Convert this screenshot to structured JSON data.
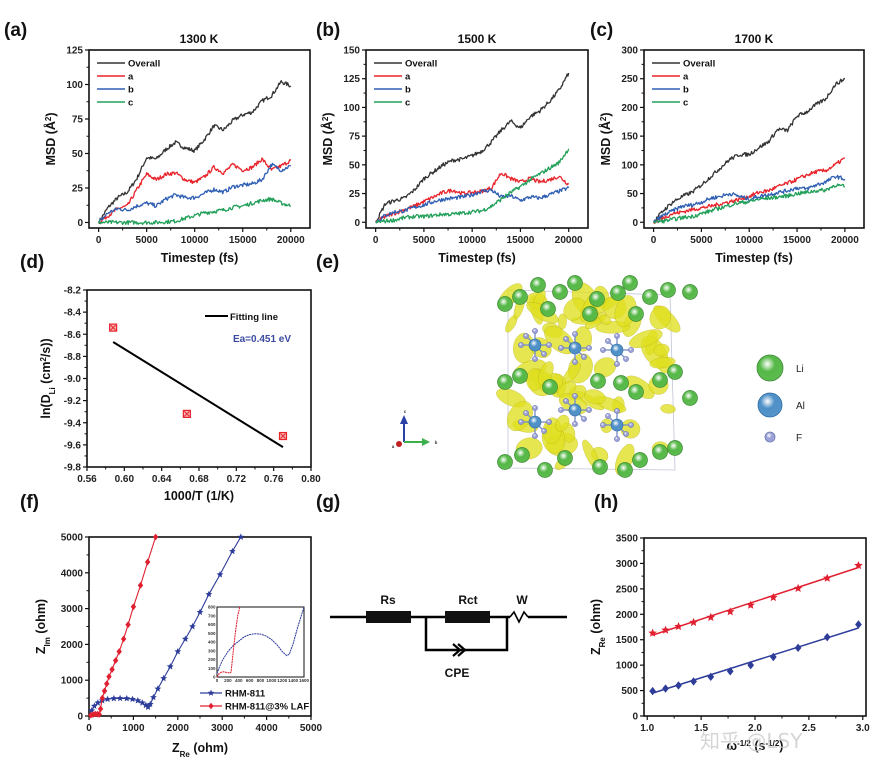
{
  "figure": {
    "panel_labels": [
      "(a)",
      "(b)",
      "(c)",
      "(d)",
      "(e)",
      "(f)",
      "(g)",
      "(h)"
    ],
    "watermark": "知乎 @LSY",
    "colors": {
      "overall": "#333333",
      "a": "#e8242b",
      "b": "#2f5fb3",
      "c": "#22a05a",
      "fit": "#000000",
      "points": "#e8242b",
      "ea_text": "#3b4ba0",
      "rhm811": "#2e3d9a",
      "rhm811_laf": "#e02030",
      "li": "#55b847",
      "al": "#4d8fc7",
      "f": "#9aa0d8",
      "density": "#e0e020"
    }
  },
  "chart_data": [
    {
      "id": "a",
      "type": "line",
      "title": "1300 K",
      "xlabel": "Timestep (fs)",
      "ylabel": "MSD (Å²)",
      "xlim": [
        -1000,
        22000
      ],
      "ylim": [
        -4,
        125
      ],
      "xticks": [
        0,
        5000,
        10000,
        15000,
        20000
      ],
      "yticks": [
        0,
        25,
        50,
        75,
        100,
        125
      ],
      "legend": "top-left",
      "grid": false,
      "x": [
        0,
        1000,
        2000,
        3000,
        4000,
        5000,
        6000,
        7000,
        8000,
        9000,
        10000,
        11000,
        12000,
        13000,
        14000,
        15000,
        16000,
        17000,
        18000,
        19000,
        20000
      ],
      "series": [
        {
          "name": "Overall",
          "key": "overall",
          "values": [
            0,
            11,
            18,
            22,
            32,
            47,
            46,
            53,
            58,
            54,
            52,
            60,
            70,
            67,
            74,
            78,
            80,
            88,
            92,
            102,
            99
          ]
        },
        {
          "name": "a",
          "key": "a",
          "values": [
            0,
            5,
            10,
            12,
            24,
            35,
            31,
            35,
            36,
            31,
            29,
            33,
            40,
            36,
            42,
            38,
            40,
            46,
            38,
            41,
            45
          ]
        },
        {
          "name": "b",
          "key": "b",
          "values": [
            0,
            7,
            10,
            9,
            12,
            14,
            12,
            17,
            20,
            18,
            18,
            21,
            24,
            22,
            26,
            27,
            28,
            31,
            42,
            38,
            41
          ]
        },
        {
          "name": "c",
          "key": "c",
          "values": [
            0,
            0,
            0,
            0,
            0,
            0,
            0,
            0.5,
            1,
            3,
            5,
            7,
            8,
            9,
            11,
            12,
            14,
            16,
            17,
            14,
            12
          ]
        }
      ]
    },
    {
      "id": "b",
      "type": "line",
      "title": "1500 K",
      "xlabel": "Timestep (fs)",
      "ylabel": "MSD (Å²)",
      "xlim": [
        -1000,
        22000
      ],
      "ylim": [
        -5,
        150
      ],
      "xticks": [
        0,
        5000,
        10000,
        15000,
        20000
      ],
      "yticks": [
        0,
        25,
        50,
        75,
        100,
        125,
        150
      ],
      "legend": "top-left",
      "grid": false,
      "x": [
        0,
        1000,
        2000,
        3000,
        4000,
        5000,
        6000,
        7000,
        8000,
        9000,
        10000,
        11000,
        12000,
        13000,
        14000,
        15000,
        16000,
        17000,
        18000,
        19000,
        20000
      ],
      "series": [
        {
          "name": "Overall",
          "key": "overall",
          "values": [
            0,
            16,
            19,
            21,
            28,
            38,
            44,
            50,
            54,
            55,
            58,
            62,
            70,
            80,
            88,
            82,
            92,
            97,
            105,
            115,
            130
          ]
        },
        {
          "name": "a",
          "key": "a",
          "values": [
            0,
            5,
            8,
            11,
            14,
            18,
            22,
            26,
            28,
            25,
            26,
            27,
            30,
            43,
            38,
            35,
            38,
            35,
            37,
            40,
            33
          ]
        },
        {
          "name": "b",
          "key": "b",
          "values": [
            0,
            6,
            9,
            10,
            13,
            15,
            18,
            20,
            21,
            22,
            24,
            27,
            28,
            22,
            23,
            19,
            22,
            21,
            24,
            27,
            30
          ]
        },
        {
          "name": "c",
          "key": "c",
          "values": [
            0,
            1,
            2,
            4,
            5,
            5,
            6,
            7,
            7,
            8,
            9,
            10,
            14,
            20,
            26,
            31,
            37,
            42,
            47,
            52,
            64
          ]
        }
      ]
    },
    {
      "id": "c",
      "type": "line",
      "title": "1700 K",
      "xlabel": "Timestep (fs)",
      "ylabel": "MSD (Å²)",
      "xlim": [
        -1000,
        22000
      ],
      "ylim": [
        -10,
        300
      ],
      "xticks": [
        0,
        5000,
        10000,
        15000,
        20000
      ],
      "yticks": [
        0,
        50,
        100,
        150,
        200,
        250,
        300
      ],
      "legend": "top-left",
      "grid": false,
      "x": [
        0,
        1000,
        2000,
        3000,
        4000,
        5000,
        6000,
        7000,
        8000,
        9000,
        10000,
        11000,
        12000,
        13000,
        14000,
        15000,
        16000,
        17000,
        18000,
        19000,
        20000
      ],
      "series": [
        {
          "name": "Overall",
          "key": "overall",
          "values": [
            0,
            20,
            35,
            45,
            52,
            65,
            80,
            95,
            110,
            118,
            118,
            130,
            140,
            162,
            160,
            185,
            192,
            205,
            215,
            240,
            250
          ]
        },
        {
          "name": "a",
          "key": "a",
          "values": [
            0,
            8,
            15,
            18,
            22,
            25,
            28,
            32,
            36,
            40,
            45,
            52,
            55,
            62,
            68,
            75,
            82,
            88,
            90,
            100,
            112
          ]
        },
        {
          "name": "b",
          "key": "b",
          "values": [
            0,
            12,
            20,
            28,
            30,
            35,
            42,
            45,
            50,
            45,
            40,
            45,
            48,
            52,
            55,
            60,
            58,
            65,
            70,
            80,
            75
          ]
        },
        {
          "name": "c",
          "key": "c",
          "values": [
            0,
            2,
            5,
            8,
            10,
            15,
            20,
            25,
            30,
            34,
            36,
            40,
            42,
            44,
            46,
            50,
            52,
            55,
            56,
            65,
            62
          ]
        }
      ]
    },
    {
      "id": "d",
      "type": "scatter",
      "title": "",
      "xlabel": "1000/T (1/K)",
      "ylabel": "ln(D_Li (cm²/s))",
      "xlim": [
        0.56,
        0.8
      ],
      "ylim": [
        -9.8,
        -8.2
      ],
      "xticks": [
        0.56,
        0.6,
        0.64,
        0.68,
        0.72,
        0.76,
        0.8
      ],
      "xtick_labels": [
        "0.56",
        "0.60",
        "0.64",
        "0.68",
        "0.72",
        "0.76",
        "0.80"
      ],
      "yticks": [
        -9.8,
        -9.6,
        -9.4,
        -9.2,
        -9.0,
        -8.8,
        -8.6,
        -8.4,
        -8.2
      ],
      "ytick_labels": [
        "-9.8",
        "-9.6",
        "-9.4",
        "-9.2",
        "-9.0",
        "-8.8",
        "-8.6",
        "-8.4",
        "-8.2"
      ],
      "legend": "top-right",
      "legend_label": "Fitting line",
      "annotation": "Ea=0.451 eV",
      "points": {
        "x": [
          0.588,
          0.667,
          0.77
        ],
        "y": [
          -8.54,
          -9.32,
          -9.52
        ]
      },
      "fit_line": {
        "x": [
          0.588,
          0.77
        ],
        "y": [
          -8.67,
          -9.62
        ]
      }
    },
    {
      "id": "f",
      "type": "line",
      "title": "",
      "xlabel": "Z_Re (ohm)",
      "ylabel": "Z_Im (ohm)",
      "xlim": [
        0,
        5000
      ],
      "ylim": [
        0,
        5000
      ],
      "xticks": [
        0,
        1000,
        2000,
        3000,
        4000,
        5000
      ],
      "yticks": [
        0,
        1000,
        2000,
        3000,
        4000,
        5000
      ],
      "legend": "bottom-right",
      "series": [
        {
          "name": "RHM-811",
          "key": "rhm811",
          "marker": "star",
          "x": [
            60,
            120,
            200,
            300,
            420,
            560,
            700,
            850,
            980,
            1100,
            1200,
            1280,
            1330,
            1380,
            1450,
            1550,
            1680,
            1830,
            2000,
            2170,
            2330,
            2500,
            2700,
            2950,
            3230,
            3420
          ],
          "y": [
            150,
            280,
            370,
            430,
            470,
            490,
            495,
            490,
            470,
            430,
            370,
            300,
            250,
            330,
            520,
            760,
            1050,
            1380,
            1800,
            2150,
            2500,
            2900,
            3400,
            3950,
            4600,
            5000
          ]
        },
        {
          "name": "RHM-811@3% LAF",
          "key": "rhm811_laf",
          "marker": "diamond",
          "x": [
            40,
            90,
            140,
            190,
            230,
            260,
            300,
            350,
            400,
            450,
            520,
            600,
            680,
            780,
            880,
            1000,
            1160,
            1320,
            1500
          ],
          "y": [
            20,
            40,
            55,
            50,
            45,
            200,
            500,
            700,
            900,
            1100,
            1300,
            1550,
            1800,
            2150,
            2550,
            3050,
            3650,
            4300,
            5000
          ]
        }
      ],
      "inset": {
        "xlim": [
          0,
          1600
        ],
        "ylim": [
          0,
          800
        ],
        "xticks": [
          0,
          200,
          400,
          600,
          800,
          1000,
          1200,
          1400,
          1600
        ],
        "yticks": [
          0,
          100,
          200,
          300,
          400,
          500,
          600,
          700,
          800
        ],
        "series": [
          {
            "key": "rhm811",
            "x": [
              0,
              50,
              100,
              200,
              300,
              400,
              500,
              600,
              700,
              800,
              900,
              1000,
              1100,
              1200,
              1280,
              1330,
              1400,
              1480,
              1560,
              1600
            ],
            "y": [
              40,
              120,
              190,
              290,
              360,
              410,
              460,
              485,
              495,
              490,
              470,
              430,
              370,
              290,
              245,
              260,
              380,
              560,
              720,
              800
            ]
          },
          {
            "key": "rhm811_laf",
            "x": [
              0,
              40,
              80,
              120,
              160,
              200,
              240,
              260,
              300,
              340,
              380,
              420
            ],
            "y": [
              0,
              40,
              55,
              60,
              55,
              50,
              45,
              60,
              300,
              520,
              700,
              800
            ]
          }
        ]
      }
    },
    {
      "id": "h",
      "type": "scatter",
      "title": "",
      "xlabel": "ω^-1/2 (s^-1/2)",
      "ylabel": "Z_Re (ohm)",
      "xlim": [
        0.97,
        3.03
      ],
      "ylim": [
        0,
        3500
      ],
      "xticks": [
        1.0,
        1.5,
        2.0,
        2.5,
        3.0
      ],
      "xtick_labels": [
        "1.0",
        "1.5",
        "2.0",
        "2.5",
        "3.0"
      ],
      "yticks": [
        0,
        500,
        1000,
        1500,
        2000,
        2500,
        3000,
        3500
      ],
      "series": [
        {
          "name": "RHM-811",
          "key": "rhm811_laf",
          "marker": "star",
          "x": [
            1.05,
            1.17,
            1.29,
            1.43,
            1.59,
            1.77,
            1.96,
            2.17,
            2.4,
            2.67,
            2.96
          ],
          "y": [
            1630,
            1690,
            1760,
            1840,
            1940,
            2050,
            2180,
            2330,
            2510,
            2710,
            2960
          ],
          "fit": {
            "x": [
              1.05,
              2.96
            ],
            "y": [
              1590,
              2920
            ]
          }
        },
        {
          "name": "RHM-811@3% LAF",
          "key": "rhm811",
          "marker": "diamond",
          "x": [
            1.05,
            1.17,
            1.29,
            1.43,
            1.59,
            1.77,
            1.96,
            2.17,
            2.4,
            2.67,
            2.96
          ],
          "y": [
            490,
            540,
            600,
            680,
            770,
            880,
            1000,
            1160,
            1340,
            1550,
            1800
          ],
          "fit": {
            "x": [
              1.05,
              2.96
            ],
            "y": [
              450,
              1730
            ]
          }
        }
      ]
    }
  ],
  "panel_e": {
    "axes_labels": {
      "a": "a",
      "b": "b",
      "c": "c"
    },
    "legend": [
      {
        "label": "Li",
        "key": "li"
      },
      {
        "label": "Al",
        "key": "al"
      },
      {
        "label": "F",
        "key": "f"
      }
    ]
  },
  "panel_g": {
    "components": {
      "rs": "Rs",
      "rct": "Rct",
      "w": "W",
      "cpe": "CPE"
    }
  }
}
